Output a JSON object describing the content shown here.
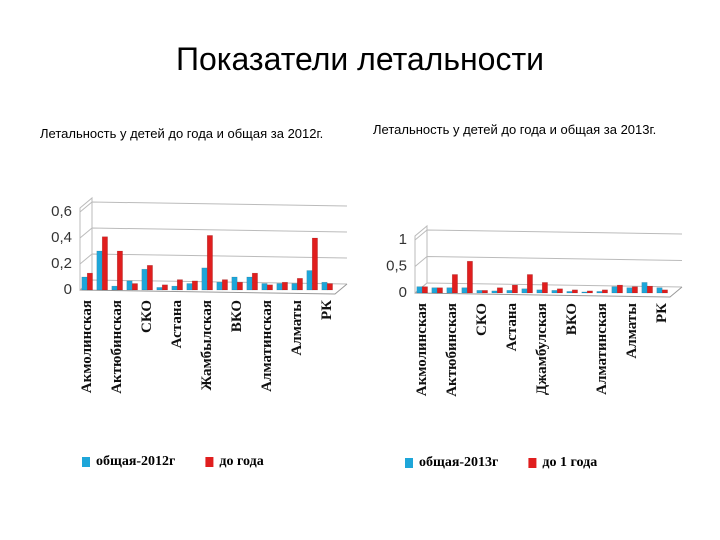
{
  "title": "Показатели летальности",
  "chart_data": [
    {
      "type": "bar",
      "title": "Летальность у детей до года и общая за 2012г.",
      "categories": [
        "Акмолинская",
        null,
        "Актюбинская",
        null,
        "СКО",
        null,
        "Астана",
        null,
        "Жамбылская",
        null,
        "ВКО",
        null,
        "Алматинская",
        null,
        "Алматы",
        null,
        "РК"
      ],
      "series": [
        {
          "name": "общая-2012г",
          "color": "#1ea6d9",
          "values": [
            0.1,
            0.3,
            0.03,
            0.07,
            0.16,
            0.02,
            0.03,
            0.05,
            0.17,
            0.06,
            0.1,
            0.1,
            0.05,
            0.05,
            0.05,
            0.15,
            0.06
          ]
        },
        {
          "name": "до года",
          "color": "#e01e1e",
          "values": [
            0.13,
            0.41,
            0.3,
            0.05,
            0.19,
            0.04,
            0.08,
            0.07,
            0.42,
            0.08,
            0.06,
            0.13,
            0.04,
            0.06,
            0.09,
            0.4,
            0.05
          ]
        }
      ],
      "ylim": [
        0,
        0.6
      ],
      "yticks": [
        0,
        {
          "value": 0.2,
          "label": "0,2"
        },
        {
          "value": 0.4,
          "label": "0,4"
        },
        {
          "value": 0.6,
          "label": "0,6"
        }
      ],
      "grid": true
    },
    {
      "type": "bar",
      "title": "Летальность у детей до года и общая за 2013г.",
      "categories": [
        "Акмолинская",
        null,
        "Актюбинская",
        null,
        "СКО",
        null,
        "Астана",
        null,
        "Джамбулская",
        null,
        "ВКО",
        null,
        "Алматинская",
        null,
        "Алматы",
        null,
        "РК"
      ],
      "series": [
        {
          "name": "общая-2013г",
          "color": "#1ea6d9",
          "values": [
            0.12,
            0.1,
            0.1,
            0.1,
            0.05,
            0.04,
            0.05,
            0.08,
            0.06,
            0.05,
            0.03,
            0.02,
            0.03,
            0.12,
            0.1,
            0.2,
            0.1
          ]
        },
        {
          "name": "до 1 года",
          "color": "#e01e1e",
          "values": [
            0.12,
            0.1,
            0.35,
            0.6,
            0.05,
            0.1,
            0.15,
            0.35,
            0.2,
            0.08,
            0.06,
            0.04,
            0.06,
            0.15,
            0.12,
            0.13,
            0.06
          ]
        }
      ],
      "ylim": [
        0,
        1
      ],
      "yticks": [
        0,
        {
          "value": 0.5,
          "label": "0,5"
        },
        1
      ],
      "grid": true
    }
  ]
}
